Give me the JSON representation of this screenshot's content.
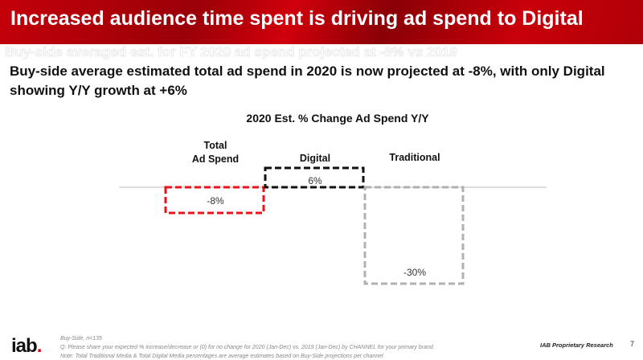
{
  "header": {
    "title": "Increased audience time spent is driving ad spend to Digital"
  },
  "ghost_text": "Buy-side averaged est. for FY 2020 ad spend projected at -8% vs 2019",
  "subtitle": "Buy-side average estimated total ad spend in 2020 is now projected at -8%, with only Digital showing Y/Y growth at +6%",
  "chart_data": {
    "type": "bar",
    "title": "2020 Est. % Change Ad Spend Y/Y",
    "categories": [
      "Total Ad Spend",
      "Digital",
      "Traditional"
    ],
    "category_lines": [
      [
        "Total",
        "Ad Spend"
      ],
      [
        "Digital"
      ],
      [
        "Traditional"
      ]
    ],
    "values": [
      -8,
      6,
      -30
    ],
    "labels": [
      "-8%",
      "6%",
      "-30%"
    ],
    "colors": [
      "#e8141c",
      "#111111",
      "#b0b0b0"
    ],
    "style": "waterfall, dashed outlines",
    "ylim": [
      -30,
      6
    ],
    "grid": false
  },
  "footer": {
    "base": "Buy-Side, n=135",
    "question": "Q: Please share your expected % increase/decrease or (0) for no change for 2020 (Jan-Dec) vs. 2019 (Jan-Dec) by CHANNEL for your primary brand.",
    "note": "Note: Total Traditional Media & Total Digital Media percentages are average estimates based on Buy-Side projections per channel",
    "logo": "iab.",
    "proprietary": "IAB Proprietary Research",
    "page": "7"
  }
}
